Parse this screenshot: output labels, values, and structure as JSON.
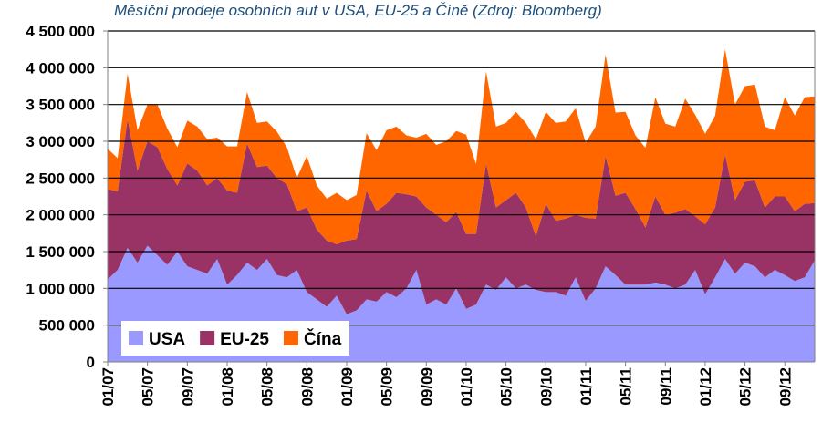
{
  "chart_data": {
    "type": "area",
    "stacked": true,
    "title": "Měsíční prodeje osobních aut v USA, EU-25 a Číně (Zdroj: Bloomberg)",
    "xlabel": "",
    "ylabel": "",
    "ylim": [
      0,
      4500000
    ],
    "yticks": [
      0,
      500000,
      1000000,
      1500000,
      2000000,
      2500000,
      3000000,
      3500000,
      4000000,
      4500000
    ],
    "ytick_labels": [
      "0",
      "500 000",
      "1 000 000",
      "1 500 000",
      "2 000 000",
      "2 500 000",
      "3 000 000",
      "3 500 000",
      "4 000 000",
      "4 500 000"
    ],
    "xtick_labels": [
      {
        "label": "01/07",
        "month_index": 0
      },
      {
        "label": "05/07",
        "month_index": 4
      },
      {
        "label": "09/07",
        "month_index": 8
      },
      {
        "label": "01/08",
        "month_index": 12
      },
      {
        "label": "05/08",
        "month_index": 16
      },
      {
        "label": "09/08",
        "month_index": 20
      },
      {
        "label": "01/09",
        "month_index": 24
      },
      {
        "label": "05/09",
        "month_index": 28
      },
      {
        "label": "09/09",
        "month_index": 32
      },
      {
        "label": "01/10",
        "month_index": 36
      },
      {
        "label": "05/10",
        "month_index": 40
      },
      {
        "label": "09/10",
        "month_index": 44
      },
      {
        "label": "01/11",
        "month_index": 48
      },
      {
        "label": "05/11",
        "month_index": 52
      },
      {
        "label": "09/11",
        "month_index": 56
      },
      {
        "label": "01/12",
        "month_index": 60
      },
      {
        "label": "05/12",
        "month_index": 64
      },
      {
        "label": "09/12",
        "month_index": 68
      }
    ],
    "grid": true,
    "legend_position": "bottom-left",
    "colors": {
      "plot_background": "#ffffff",
      "gridline": "#000000"
    },
    "series": [
      {
        "name": "USA",
        "color": "#9999ff",
        "values": [
          1120000,
          1250000,
          1550000,
          1350000,
          1580000,
          1450000,
          1320000,
          1500000,
          1300000,
          1250000,
          1200000,
          1400000,
          1050000,
          1180000,
          1350000,
          1250000,
          1400000,
          1180000,
          1150000,
          1250000,
          950000,
          850000,
          750000,
          900000,
          650000,
          700000,
          850000,
          820000,
          950000,
          880000,
          1000000,
          1250000,
          780000,
          850000,
          780000,
          1000000,
          720000,
          780000,
          1050000,
          980000,
          1150000,
          1000000,
          1050000,
          980000,
          950000,
          950000,
          900000,
          1150000,
          830000,
          1000000,
          1300000,
          1180000,
          1050000,
          1050000,
          1050000,
          1080000,
          1050000,
          1000000,
          1050000,
          1250000,
          920000,
          1150000,
          1400000,
          1200000,
          1350000,
          1300000,
          1150000,
          1250000,
          1180000,
          1100000,
          1150000,
          1380000
        ]
      },
      {
        "name": "EU-25",
        "color": "#993366",
        "values": [
          1230000,
          1070000,
          1750000,
          1250000,
          1420000,
          1470000,
          1300000,
          900000,
          1400000,
          1350000,
          1200000,
          1100000,
          1280000,
          1120000,
          1620000,
          1400000,
          1270000,
          1320000,
          1270000,
          800000,
          1150000,
          950000,
          900000,
          700000,
          1000000,
          970000,
          1480000,
          1230000,
          1200000,
          1420000,
          1280000,
          1000000,
          1320000,
          1150000,
          1120000,
          1040000,
          1020000,
          960000,
          1650000,
          1120000,
          1050000,
          1300000,
          1050000,
          730000,
          1200000,
          970000,
          1050000,
          850000,
          1130000,
          950000,
          1500000,
          1080000,
          1250000,
          1030000,
          780000,
          1170000,
          950000,
          1030000,
          1030000,
          730000,
          950000,
          950000,
          1420000,
          1000000,
          1100000,
          1170000,
          950000,
          1000000,
          1070000,
          950000,
          1000000,
          780000
        ]
      },
      {
        "name": "Čína",
        "color": "#ff6600",
        "values": [
          550000,
          450000,
          620000,
          550000,
          500000,
          580000,
          550000,
          520000,
          580000,
          600000,
          630000,
          550000,
          600000,
          630000,
          700000,
          600000,
          600000,
          630000,
          500000,
          450000,
          700000,
          600000,
          570000,
          700000,
          550000,
          600000,
          780000,
          830000,
          1000000,
          900000,
          800000,
          800000,
          1000000,
          950000,
          1100000,
          1100000,
          1350000,
          950000,
          1250000,
          1100000,
          1050000,
          1100000,
          1150000,
          1320000,
          1250000,
          1330000,
          1320000,
          1450000,
          1020000,
          1250000,
          1380000,
          1130000,
          1100000,
          1000000,
          1080000,
          1350000,
          1240000,
          1170000,
          1500000,
          1380000,
          1230000,
          1250000,
          1430000,
          1300000,
          1300000,
          1300000,
          1100000,
          900000,
          1350000,
          1300000,
          1450000,
          1450000
        ]
      }
    ]
  }
}
